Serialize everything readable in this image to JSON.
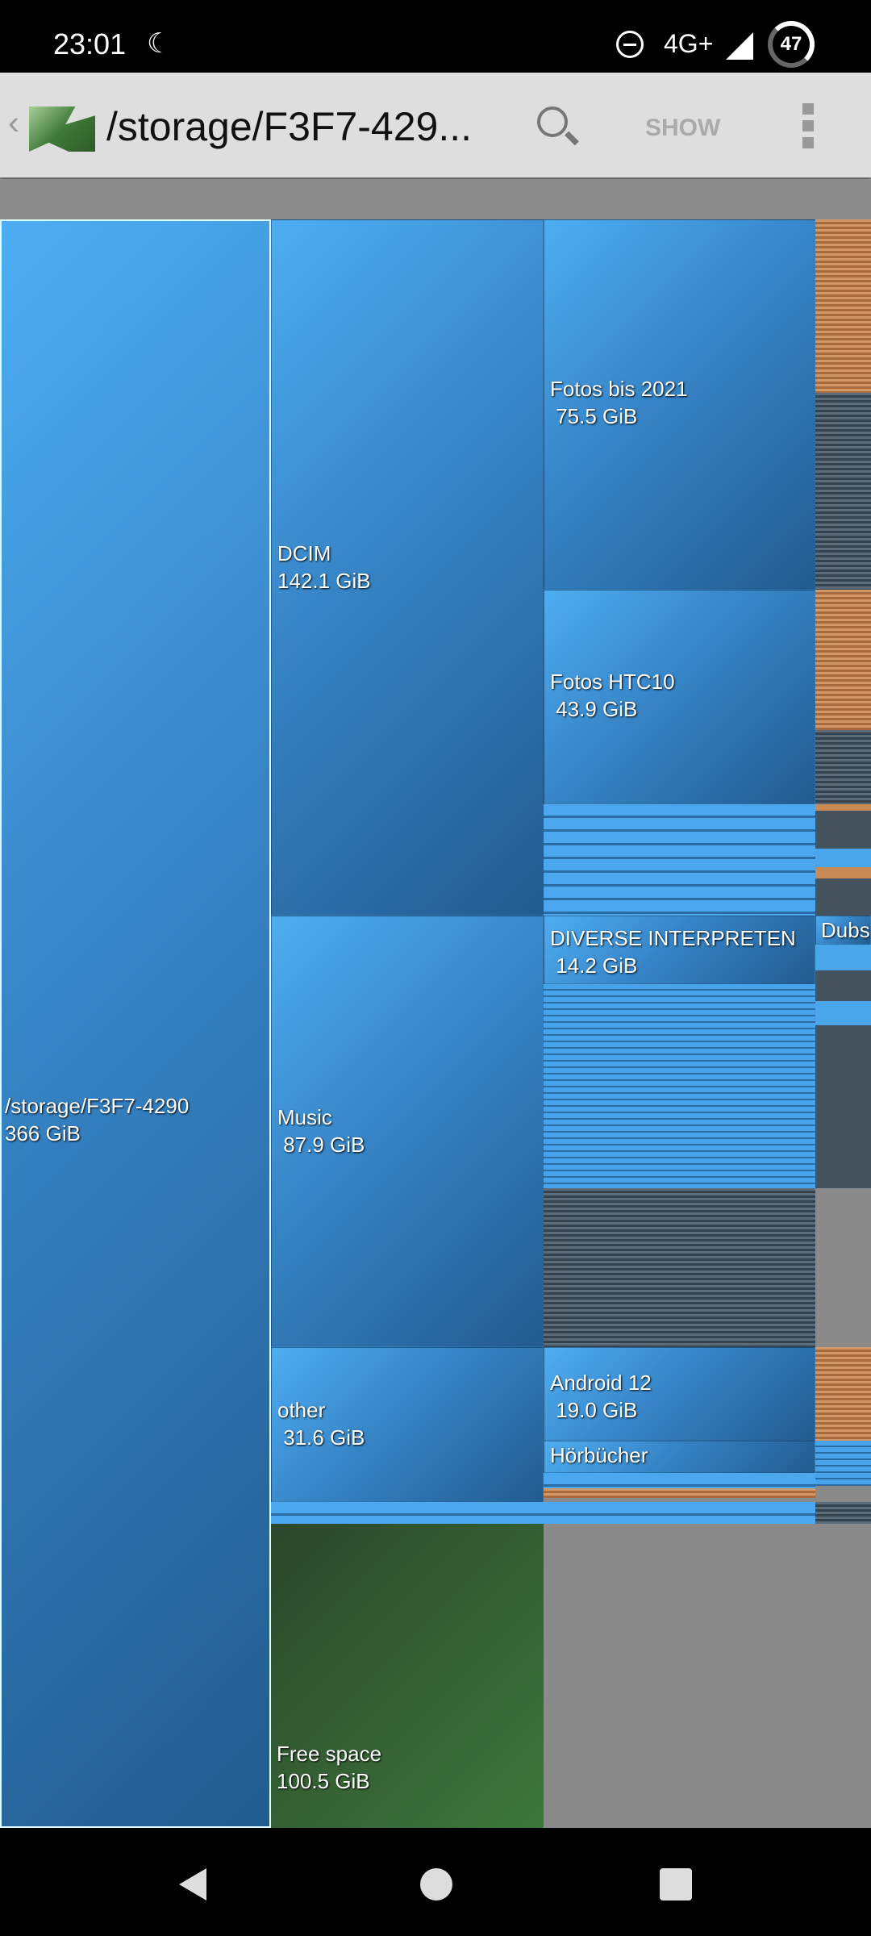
{
  "status_bar": {
    "time": "23:01",
    "network": "4G+",
    "battery": "47",
    "icons": [
      "dnd-moon-icon",
      "dnd-minus-icon",
      "signal-icon",
      "battery-ring-icon"
    ]
  },
  "toolbar": {
    "path": "/storage/F3F7-429...",
    "show_label": "SHOW",
    "icons": [
      "back-chevron-icon",
      "app-logo-icon",
      "search-icon",
      "overflow-menu-icon"
    ]
  },
  "treemap": {
    "root": {
      "name": "/storage/F3F7-4290",
      "size": "366 GiB"
    },
    "level1": [
      {
        "name": "DCIM",
        "size": "142.1 GiB"
      },
      {
        "name": "Music",
        "size": " 87.9 GiB"
      },
      {
        "name": "other",
        "size": " 31.6 GiB"
      },
      {
        "name": "Free space",
        "size": "100.5 GiB"
      }
    ],
    "level2": [
      {
        "name": "Fotos bis 2021",
        "size": " 75.5 GiB"
      },
      {
        "name": "Fotos HTC10",
        "size": " 43.9 GiB"
      },
      {
        "name": "DIVERSE INTERPRETEN",
        "size": " 14.2 GiB"
      },
      {
        "name": "Android 12",
        "size": " 19.0 GiB"
      },
      {
        "name": "Hörbücher",
        "size": ""
      }
    ],
    "level3": [
      {
        "name": "Dubs"
      }
    ],
    "colors": {
      "folder": "#3a8ad0",
      "file_dark": "#3d4c59",
      "file_orange": "#c08050",
      "free": "#3a6a38",
      "unused": "#8a8a8a"
    }
  }
}
